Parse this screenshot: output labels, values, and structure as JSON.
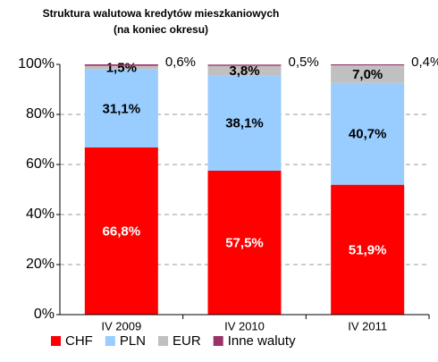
{
  "chart_data": {
    "type": "stacked_bar",
    "title": [
      "Struktura walutowa kredytów mieszkaniowych",
      "(na koniec okresu)"
    ],
    "categories": [
      "IV 2009",
      "IV 2010",
      "IV 2011"
    ],
    "series": [
      {
        "name": "CHF",
        "color": "#ff0000",
        "values": [
          66.8,
          57.5,
          51.9
        ],
        "value_labels": [
          "66,8%",
          "57,5%",
          "51,9%"
        ]
      },
      {
        "name": "PLN",
        "color": "#99ccff",
        "values": [
          31.1,
          38.1,
          40.7
        ],
        "value_labels": [
          "31,1%",
          "38,1%",
          "40,7%"
        ]
      },
      {
        "name": "EUR",
        "color": "#c0c0c0",
        "values": [
          1.5,
          3.8,
          7.0
        ],
        "value_labels": [
          "1,5%",
          "3,8%",
          "7,0%"
        ]
      },
      {
        "name": "Inne waluty",
        "color": "#993366",
        "values": [
          0.6,
          0.5,
          0.4
        ],
        "value_labels": [
          "0,6%",
          "0,5%",
          "0,4%"
        ]
      }
    ],
    "ylim": [
      0,
      100
    ],
    "yticks": [
      {
        "value": 0,
        "label": "0%"
      },
      {
        "value": 20,
        "label": "20%"
      },
      {
        "value": 40,
        "label": "40%"
      },
      {
        "value": 60,
        "label": "60%"
      },
      {
        "value": 80,
        "label": "80%"
      },
      {
        "value": 100,
        "label": "100%"
      }
    ],
    "grid": true,
    "legend": "bottom"
  }
}
